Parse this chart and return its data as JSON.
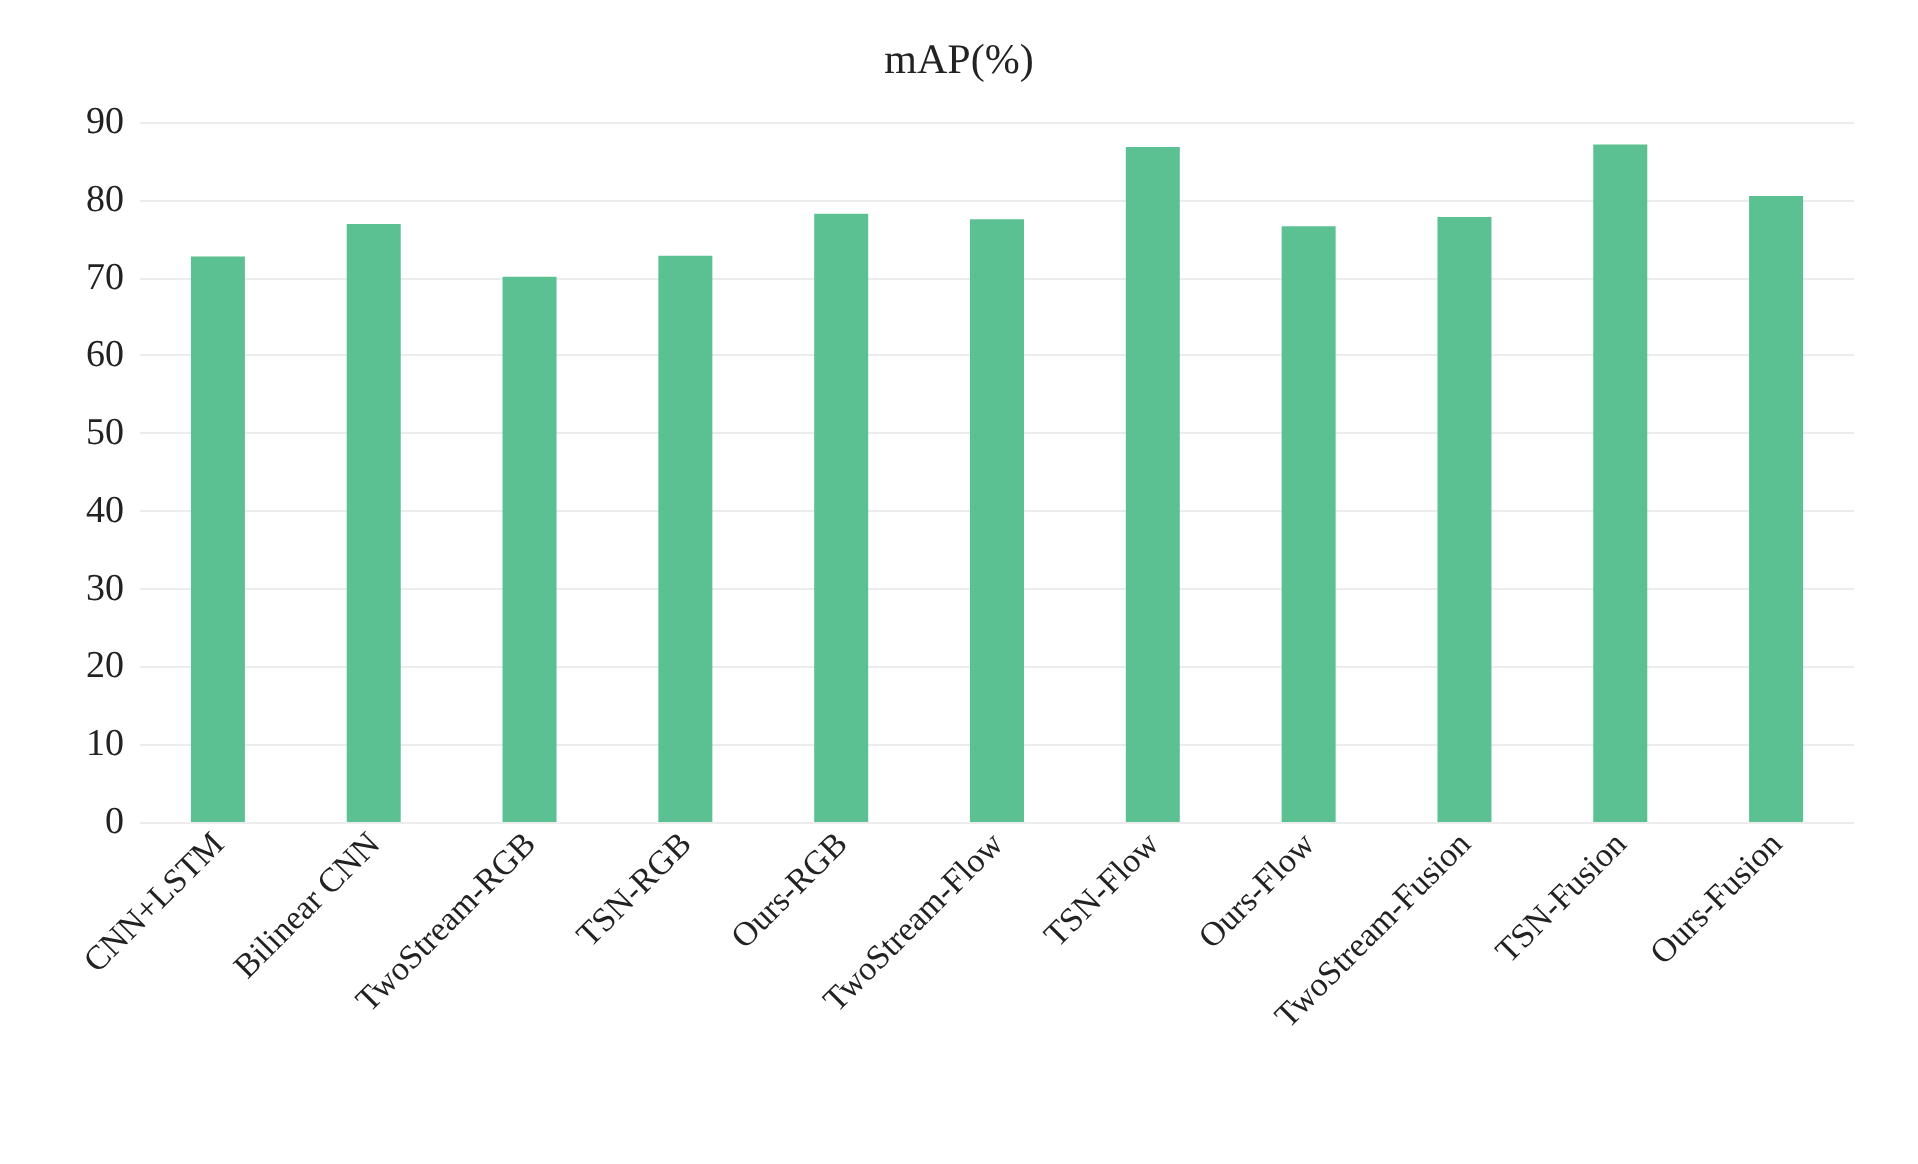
{
  "chart_data": {
    "type": "bar",
    "title": "mAP(%)",
    "categories": [
      "CNN+LSTM",
      "Bilinear CNN",
      "TwoStream-RGB",
      "TSN-RGB",
      "Ours-RGB",
      "TwoStream-Flow",
      "TSN-Flow",
      "Ours-Flow",
      "TwoStream-Fusion",
      "TSN-Fusion",
      "Ours-Fusion"
    ],
    "values": [
      72.7,
      76.9,
      70.1,
      72.8,
      78.2,
      77.5,
      86.8,
      76.6,
      77.8,
      87.1,
      80.5
    ],
    "color": "#5cc192",
    "ylim": [
      0,
      90
    ],
    "yticks": [
      0,
      10,
      20,
      30,
      40,
      50,
      60,
      70,
      80,
      90
    ],
    "grid": "y"
  }
}
